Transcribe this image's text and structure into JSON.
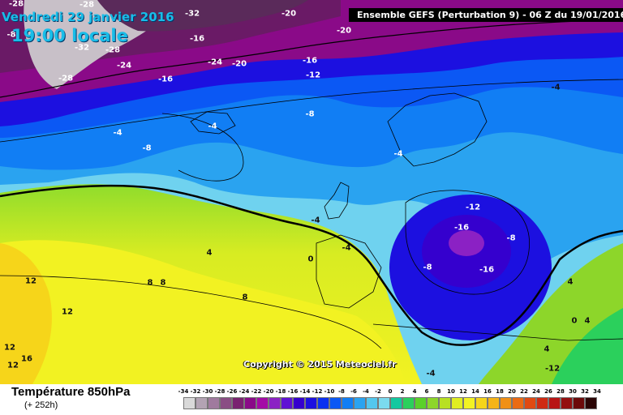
{
  "header": {
    "date": "Vendredi 29 janvier 2016",
    "time": "19:00 locale",
    "run": "Ensemble GEFS  (Perturbation 9)  -  06 Z du 19/01/2016"
  },
  "map": {
    "copyright": "Copyright © 2015 Meteociel.fr",
    "isotherms_light": [
      "-28",
      "-32",
      "-32",
      "-28",
      "-24",
      "-28",
      "-28",
      "-20",
      "-20",
      "-24",
      "-20",
      "-16",
      "-16",
      "-12",
      "-16",
      "-8",
      "-4",
      "-8",
      "-8",
      "-4",
      "-4"
    ],
    "isotherms_dark": [
      "-4",
      "0",
      "-4",
      "4",
      "8",
      "8",
      "8",
      "12",
      "12",
      "12",
      "12",
      "16",
      "4",
      "0",
      "4",
      "4",
      "-12",
      "-16",
      "-8",
      "-8",
      "-16",
      "-4",
      "-4",
      "-12"
    ]
  },
  "footer": {
    "parameter": "Température 850hPa",
    "lead_time": "(+ 252h)"
  },
  "legend": {
    "ticks": [
      "-34",
      "-32",
      "-30",
      "-28",
      "-26",
      "-24",
      "-22",
      "-20",
      "-18",
      "-16",
      "-14",
      "-12",
      "-10",
      "-8",
      "-6",
      "-4",
      "-2",
      "0",
      "2",
      "4",
      "6",
      "8",
      "10",
      "12",
      "14",
      "16",
      "18",
      "20",
      "22",
      "24",
      "26",
      "28",
      "30",
      "32",
      "34"
    ],
    "colors": [
      "#d9d9d9",
      "#b3a3b3",
      "#a07a9e",
      "#8a4d84",
      "#7a2270",
      "#8a0a88",
      "#a40aa6",
      "#8b21c4",
      "#5f11d4",
      "#3500ce",
      "#1c10e0",
      "#0a30f0",
      "#0b58f4",
      "#117ef4",
      "#2aa3f0",
      "#53c7ee",
      "#7bdaef",
      "#14c8a0",
      "#2bd05c",
      "#5ad12a",
      "#8dd62a",
      "#b8e022",
      "#e0ee22",
      "#f2f222",
      "#f6d51a",
      "#f5b418",
      "#f09016",
      "#ea6b14",
      "#e04a12",
      "#cf2a12",
      "#b81414",
      "#941010",
      "#6c0a0a",
      "#2a0404"
    ]
  }
}
